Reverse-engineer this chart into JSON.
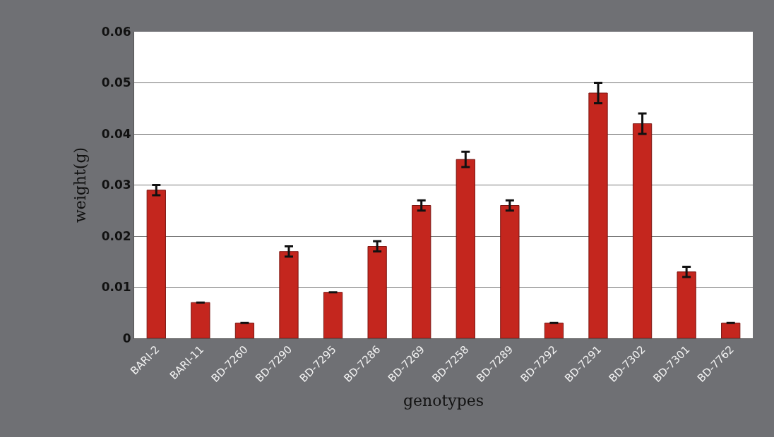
{
  "chart_data": {
    "type": "bar",
    "xlabel": "genotypes",
    "ylabel": "weight(g)",
    "categories": [
      "BARI-2",
      "BARI-11",
      "BD-7260",
      "BD-7290",
      "BD-7295",
      "BD-7286",
      "BD-7269",
      "BD-7258",
      "BD-7289",
      "BD-7292",
      "BD-7291",
      "BD-7302",
      "BD-7301",
      "BD-7762"
    ],
    "values": [
      0.029,
      0.007,
      0.003,
      0.017,
      0.009,
      0.018,
      0.026,
      0.035,
      0.026,
      0.003,
      0.048,
      0.042,
      0.013,
      0.003
    ],
    "errors": [
      0.001,
      null,
      null,
      0.001,
      null,
      0.001,
      0.001,
      0.0015,
      0.001,
      null,
      0.002,
      0.002,
      0.001,
      null
    ],
    "color": "#c4261e",
    "ylim": [
      0,
      0.06
    ],
    "yticks": [
      0,
      0.01,
      0.02,
      0.03,
      0.04,
      0.05,
      0.06
    ],
    "grid": "y"
  }
}
